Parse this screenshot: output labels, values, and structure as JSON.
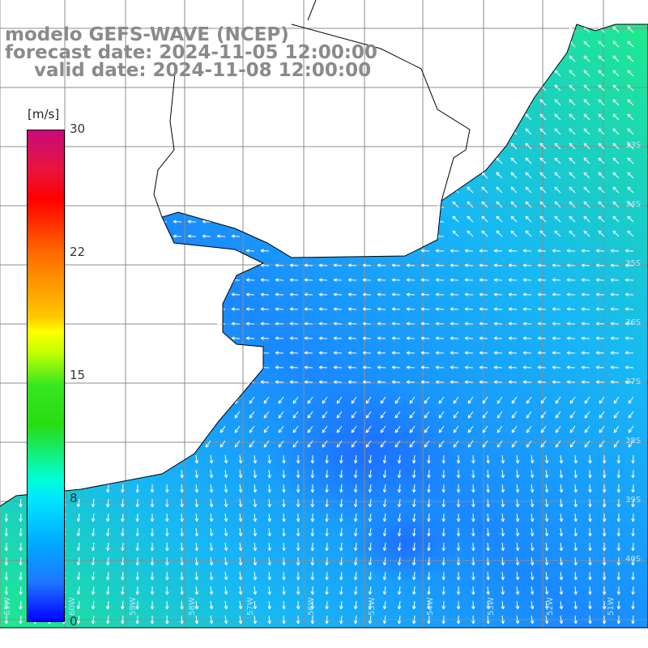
{
  "title": {
    "line1": "modelo GEFS-WAVE (NCEP)",
    "line2": "forecast date: 2024-11-05 12:00:00",
    "line3": "valid date: 2024-11-08 12:00:00"
  },
  "colorbar": {
    "unit": "[m/s]",
    "ticks": [
      "30",
      "22",
      "15",
      "8",
      "0"
    ],
    "colors": [
      "#c80a7a",
      "#ff0000",
      "#ff6a00",
      "#ffff00",
      "#28dc14",
      "#00ffd8",
      "#00aaff",
      "#0000ff"
    ]
  },
  "map": {
    "field": "wind speed with direction arrows",
    "lat_labels": [
      "33S",
      "34S",
      "35S",
      "36S",
      "37S",
      "38S",
      "39S",
      "40S"
    ],
    "lon_labels": [
      "61W",
      "60W",
      "59W",
      "58W",
      "57W",
      "56W",
      "55W",
      "54W",
      "53W",
      "52W",
      "51W"
    ],
    "ocean_colors": {
      "low": "#1e6fff",
      "mid": "#17b8f5",
      "high": "#1eea8c"
    },
    "land_color": "#ffffff",
    "coast_color": "#000000",
    "arrow_color": "#ffffff",
    "grid_color": "#8c8c8c"
  }
}
